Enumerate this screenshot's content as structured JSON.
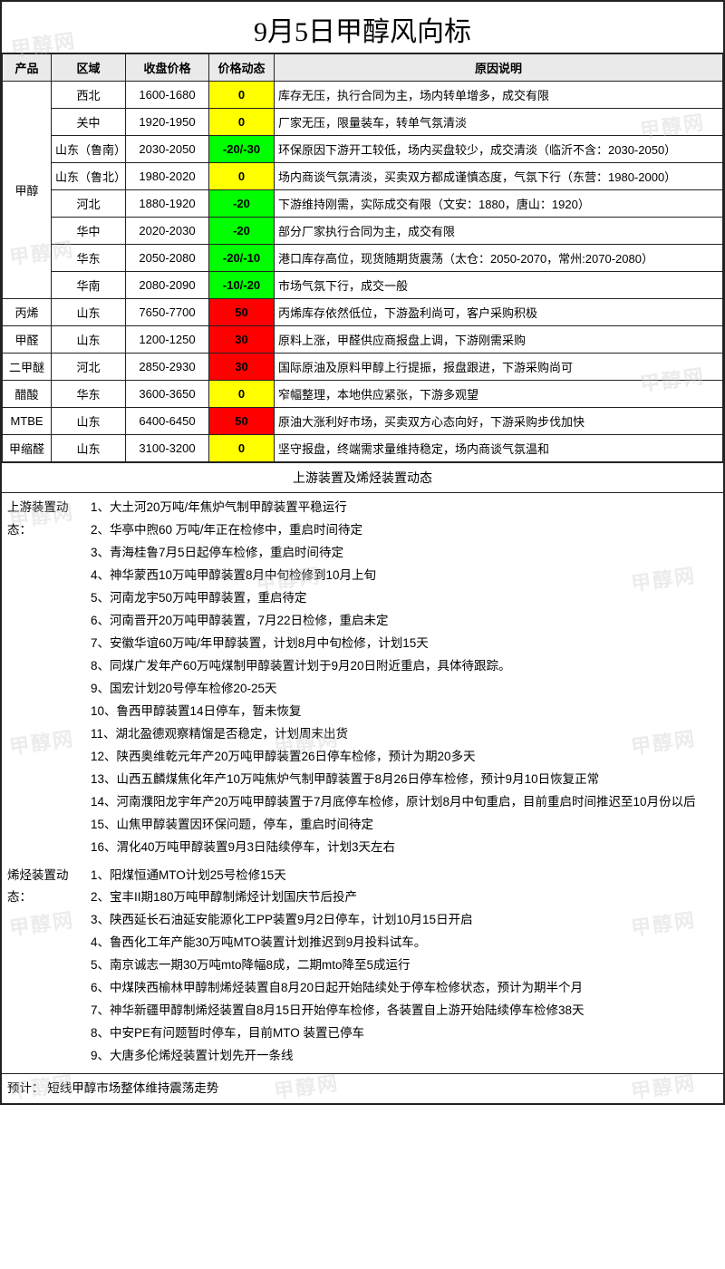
{
  "watermark_text": "甲醇网",
  "watermark_color": "rgba(200,200,200,0.35)",
  "title": "9月5日甲醇风向标",
  "columns": [
    "产品",
    "区域",
    "收盘价格",
    "价格动态",
    "原因说明"
  ],
  "trend_colors": {
    "flat": "#ffff00",
    "down": "#00ff00",
    "up": "#ff0000"
  },
  "groups": [
    {
      "product": "甲醇",
      "rows": [
        {
          "region": "西北",
          "price": "1600-1680",
          "trend": "0",
          "trend_bg": "yellow",
          "reason": "库存无压，执行合同为主，场内转单增多，成交有限"
        },
        {
          "region": "关中",
          "price": "1920-1950",
          "trend": "0",
          "trend_bg": "yellow",
          "reason": "厂家无压，限量装车，转单气氛清淡"
        },
        {
          "region": "山东（鲁南）",
          "price": "2030-2050",
          "trend": "-20/-30",
          "trend_bg": "green",
          "reason": "环保原因下游开工较低，场内买盘较少，成交清淡（临沂不含：2030-2050）"
        },
        {
          "region": "山东（鲁北）",
          "price": "1980-2020",
          "trend": "0",
          "trend_bg": "yellow",
          "reason": "场内商谈气氛清淡，买卖双方都成谨慎态度，气氛下行（东营：1980-2000）"
        },
        {
          "region": "河北",
          "price": "1880-1920",
          "trend": "-20",
          "trend_bg": "green",
          "reason": "下游维持刚需，实际成交有限（文安：1880，唐山：1920）"
        },
        {
          "region": "华中",
          "price": "2020-2030",
          "trend": "-20",
          "trend_bg": "green",
          "reason": "部分厂家执行合同为主，成交有限"
        },
        {
          "region": "华东",
          "price": "2050-2080",
          "trend": "-20/-10",
          "trend_bg": "green",
          "reason": "港口库存高位，现货随期货震荡（太仓：2050-2070，常州:2070-2080）"
        },
        {
          "region": "华南",
          "price": "2080-2090",
          "trend": "-10/-20",
          "trend_bg": "green",
          "reason": "市场气氛下行，成交一般"
        }
      ]
    },
    {
      "product": "丙烯",
      "rows": [
        {
          "region": "山东",
          "price": "7650-7700",
          "trend": "50",
          "trend_bg": "red",
          "reason": "丙烯库存依然低位，下游盈利尚可，客户采购积极"
        }
      ]
    },
    {
      "product": "甲醛",
      "rows": [
        {
          "region": "山东",
          "price": "1200-1250",
          "trend": "30",
          "trend_bg": "red",
          "reason": "原料上涨，甲醛供应商报盘上调，下游刚需采购"
        }
      ]
    },
    {
      "product": "二甲醚",
      "rows": [
        {
          "region": "河北",
          "price": "2850-2930",
          "trend": "30",
          "trend_bg": "red",
          "reason": "国际原油及原料甲醇上行提振，报盘跟进，下游采购尚可"
        }
      ]
    },
    {
      "product": "醋酸",
      "rows": [
        {
          "region": "华东",
          "price": "3600-3650",
          "trend": "0",
          "trend_bg": "yellow",
          "reason": "窄幅整理，本地供应紧张，下游多观望"
        }
      ]
    },
    {
      "product": "MTBE",
      "rows": [
        {
          "region": "山东",
          "price": "6400-6450",
          "trend": "50",
          "trend_bg": "red",
          "reason": "原油大涨利好市场，买卖双方心态向好，下游采购步伐加快"
        }
      ]
    },
    {
      "product": "甲缩醛",
      "rows": [
        {
          "region": "山东",
          "price": "3100-3200",
          "trend": "0",
          "trend_bg": "yellow",
          "reason": "坚守报盘，终端需求量维持稳定，场内商谈气氛温和"
        }
      ]
    }
  ],
  "section2_title": "上游装置及烯烃装置动态",
  "upstream_label": "上游装置动态：",
  "upstream_items": [
    "大土河20万吨/年焦炉气制甲醇装置平稳运行",
    "华亭中煦60 万吨/年正在检修中，重启时间待定",
    "青海桂鲁7月5日起停车检修，重启时间待定",
    "神华蒙西10万吨甲醇装置8月中旬检修到10月上旬",
    "河南龙宇50万吨甲醇装置，重启待定",
    "河南晋开20万吨甲醇装置，7月22日检修，重启未定",
    "安徽华谊60万吨/年甲醇装置，计划8月中旬检修，计划15天",
    "同煤广发年产60万吨煤制甲醇装置计划于9月20日附近重启，具体待跟踪。",
    "国宏计划20号停车检修20-25天",
    "鲁西甲醇装置14日停车，暂未恢复",
    "湖北盈德观察精馏是否稳定，计划周末出货",
    "陕西奥维乾元年产20万吨甲醇装置26日停车检修，预计为期20多天",
    "山西五麟煤焦化年产10万吨焦炉气制甲醇装置于8月26日停车检修，预计9月10日恢复正常",
    "河南濮阳龙宇年产20万吨甲醇装置于7月底停车检修，原计划8月中旬重启，目前重启时间推迟至10月份以后",
    "山焦甲醇装置因环保问题，停车，重启时间待定",
    "渭化40万吨甲醇装置9月3日陆续停车，计划3天左右"
  ],
  "olefin_label": "烯烃装置动态：",
  "olefin_items": [
    "阳煤恒通MTO计划25号检修15天",
    "宝丰II期180万吨甲醇制烯烃计划国庆节后投产",
    "陕西延长石油延安能源化工PP装置9月2日停车，计划10月15日开启",
    "鲁西化工年产能30万吨MTO装置计划推迟到9月投料试车。",
    "南京诚志一期30万吨mto降幅8成，二期mto降至5成运行",
    "中煤陕西榆林甲醇制烯烃装置自8月20日起开始陆续处于停车检修状态，预计为期半个月",
    "神华新疆甲醇制烯烃装置自8月15日开始停车检修，各装置自上游开始陆续停车检修38天",
    "中安PE有问题暂时停车，目前MTO 装置已停车",
    "大唐多伦烯烃装置计划先开一条线"
  ],
  "forecast_label": "预计：",
  "forecast_text": "短线甲醇市场整体维持震荡走势"
}
